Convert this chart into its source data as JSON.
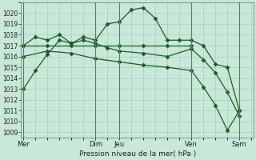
{
  "xlabel": "Pression niveau de la mer( hPa )",
  "ylim": [
    1008.5,
    1021.0
  ],
  "yticks": [
    1009,
    1010,
    1011,
    1012,
    1013,
    1014,
    1015,
    1016,
    1017,
    1018,
    1019,
    1020
  ],
  "bg_color": "#c8e8d8",
  "grid_color": "#99ccbb",
  "line_color": "#1a5c2a",
  "xtick_labels": [
    "Mer",
    "Dim",
    "Jeu",
    "Ven",
    "Sam"
  ],
  "xtick_positions": [
    0,
    3,
    4,
    7,
    9
  ],
  "xlim": [
    -0.1,
    9.6
  ],
  "vlines": [
    0,
    3,
    4,
    7,
    9
  ],
  "line1_x": [
    0,
    0.5,
    1,
    1.5,
    2,
    2.5,
    3,
    3.5,
    4,
    4.5,
    5,
    5.5,
    6,
    6.5,
    7,
    7.5,
    8,
    8.5,
    9
  ],
  "line1_y": [
    1013.0,
    1014.7,
    1016.2,
    1017.5,
    1017.2,
    1017.8,
    1017.5,
    1019.0,
    1019.2,
    1020.3,
    1020.5,
    1019.5,
    1017.5,
    1017.5,
    1017.5,
    1017.0,
    1015.3,
    1015.0,
    1011.0
  ],
  "line2_x": [
    0,
    0.5,
    1,
    1.5,
    2,
    2.5,
    3,
    3.5,
    4,
    5,
    6,
    7,
    7.5,
    8,
    8.5,
    9
  ],
  "line2_y": [
    1017.0,
    1017.8,
    1017.5,
    1018.0,
    1017.2,
    1017.5,
    1017.2,
    1016.8,
    1016.5,
    1016.3,
    1016.0,
    1016.7,
    1015.7,
    1014.5,
    1012.7,
    1010.5
  ],
  "line3_x": [
    0,
    1,
    2,
    3,
    4,
    5,
    6,
    7
  ],
  "line3_y": [
    1017.0,
    1017.0,
    1017.0,
    1017.0,
    1017.0,
    1017.0,
    1017.0,
    1017.0
  ],
  "line4_x": [
    0,
    1,
    2,
    3,
    4,
    5,
    6,
    7,
    7.5,
    8,
    8.5,
    9
  ],
  "line4_y": [
    1016.0,
    1016.5,
    1016.3,
    1015.8,
    1015.5,
    1015.2,
    1015.0,
    1014.7,
    1013.2,
    1011.5,
    1009.2,
    1011.0
  ]
}
